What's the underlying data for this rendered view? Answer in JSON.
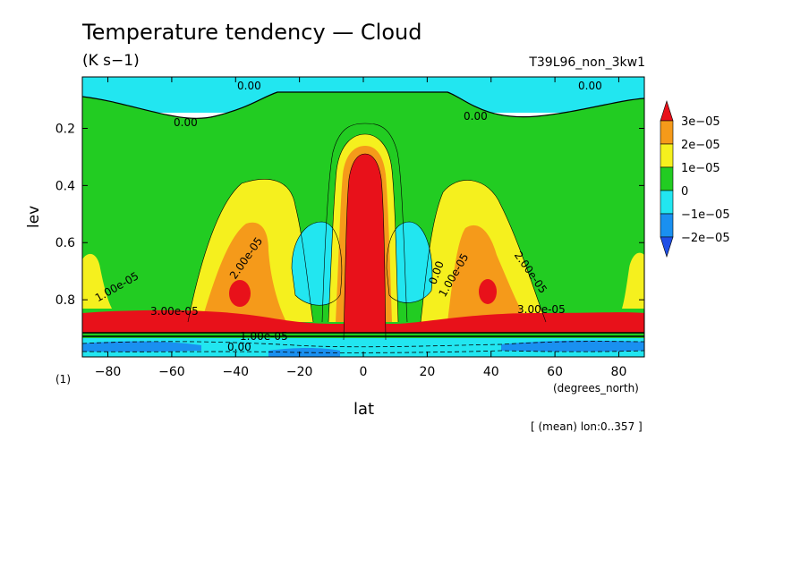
{
  "title": "Temperature tendency — Cloud",
  "units": "(K s−1)",
  "run_id": "T39L96_non_3kw1",
  "unit_note": "(1)",
  "x_units": "(degrees_north)",
  "mean_note": "[ (mean) lon:0..357 ]",
  "chart_data": {
    "type": "heatmap",
    "subtype": "filled-contour",
    "xlabel": "lat",
    "ylabel": "lev",
    "xlim": [
      -88,
      88
    ],
    "ylim": [
      0.02,
      1.0
    ],
    "y_inverted": true,
    "x_ticks": [
      -80,
      -60,
      -40,
      -20,
      0,
      20,
      40,
      60,
      80
    ],
    "x_tick_labels": [
      "−80",
      "−60",
      "−40",
      "−20",
      "0",
      "20",
      "40",
      "60",
      "80"
    ],
    "y_ticks": [
      0.2,
      0.4,
      0.6,
      0.8
    ],
    "colorbar": {
      "levels": [
        3e-05,
        2e-05,
        1e-05,
        0,
        -1e-05,
        -2e-05
      ],
      "labels": [
        "3e−05",
        "2e−05",
        "1e−05",
        "0",
        "−1e−05",
        "−2e−05"
      ],
      "colors": {
        "above_3e-05": "#e8111a",
        "2e-05_to_3e-05": "#f59a1a",
        "1e-05_to_2e-05": "#f5f01e",
        "0_to_1e-05": "#22cc22",
        "-1e-05_to_0": "#22e6f0",
        "-2e-05_to_-1e-05": "#1a90f0",
        "below_-2e-05": "#1f4fe6"
      },
      "placement": "right"
    },
    "contour_labels": [
      {
        "text": "0.00",
        "lat": -35,
        "lev": 0.15
      },
      {
        "text": "0.00",
        "lat": -28,
        "lev": 0.03
      },
      {
        "text": "0.00",
        "lat": 73,
        "lev": 0.03
      },
      {
        "text": "0.00",
        "lat": 35,
        "lev": 0.13
      },
      {
        "text": "2.00e-05",
        "lat": -42,
        "lev": 0.65
      },
      {
        "text": "1.00e-05",
        "lat": -75,
        "lev": 0.77
      },
      {
        "text": "3.00e-05",
        "lat": -55,
        "lev": 0.85
      },
      {
        "text": "1.00e-05",
        "lat": -32,
        "lev": 0.93
      },
      {
        "text": "0.00",
        "lat": -40,
        "lev": 0.97
      },
      {
        "text": "2.00e-05",
        "lat": 46,
        "lev": 0.72
      },
      {
        "text": "3.00e-05",
        "lat": 53,
        "lev": 0.86
      },
      {
        "text": "1.00e-05",
        "lat": 22,
        "lev": 0.78
      },
      {
        "text": "0.00",
        "lat": 20,
        "lev": 0.75
      }
    ]
  }
}
